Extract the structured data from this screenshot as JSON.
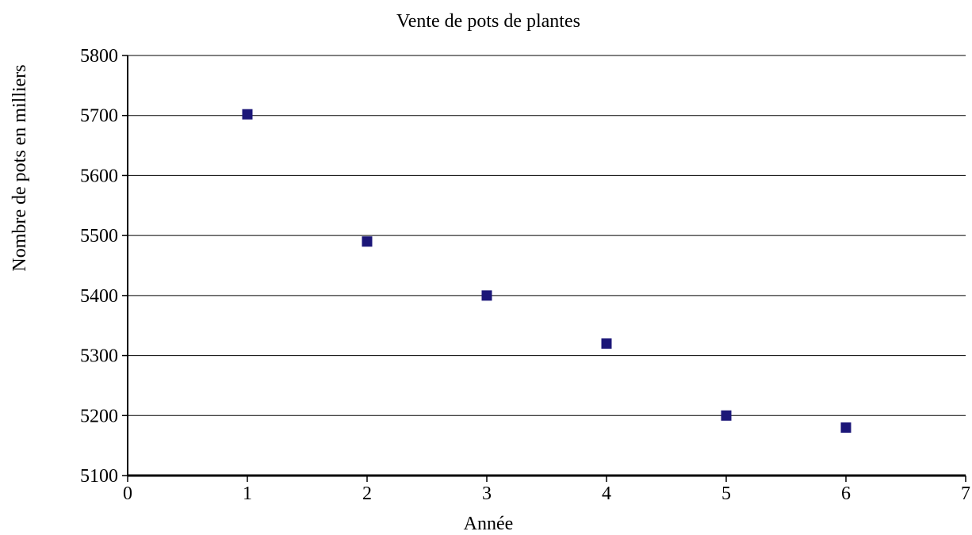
{
  "chart_data": {
    "type": "scatter",
    "title": "Vente de pots de plantes",
    "xlabel": "Année",
    "ylabel": "Nombre de pots en milliers",
    "xlim": [
      0,
      7
    ],
    "ylim": [
      5100,
      5800
    ],
    "x_ticks": [
      0,
      1,
      2,
      3,
      4,
      5,
      6,
      7
    ],
    "y_ticks": [
      5100,
      5200,
      5300,
      5400,
      5500,
      5600,
      5700,
      5800
    ],
    "grid": "horizontal",
    "legend": "none",
    "marker": "square",
    "series": [
      {
        "color": "#1b1678",
        "points": [
          {
            "x": 1,
            "y": 5702
          },
          {
            "x": 2,
            "y": 5490
          },
          {
            "x": 3,
            "y": 5400
          },
          {
            "x": 4,
            "y": 5320
          },
          {
            "x": 5,
            "y": 5200
          },
          {
            "x": 6,
            "y": 5180
          }
        ]
      }
    ]
  }
}
